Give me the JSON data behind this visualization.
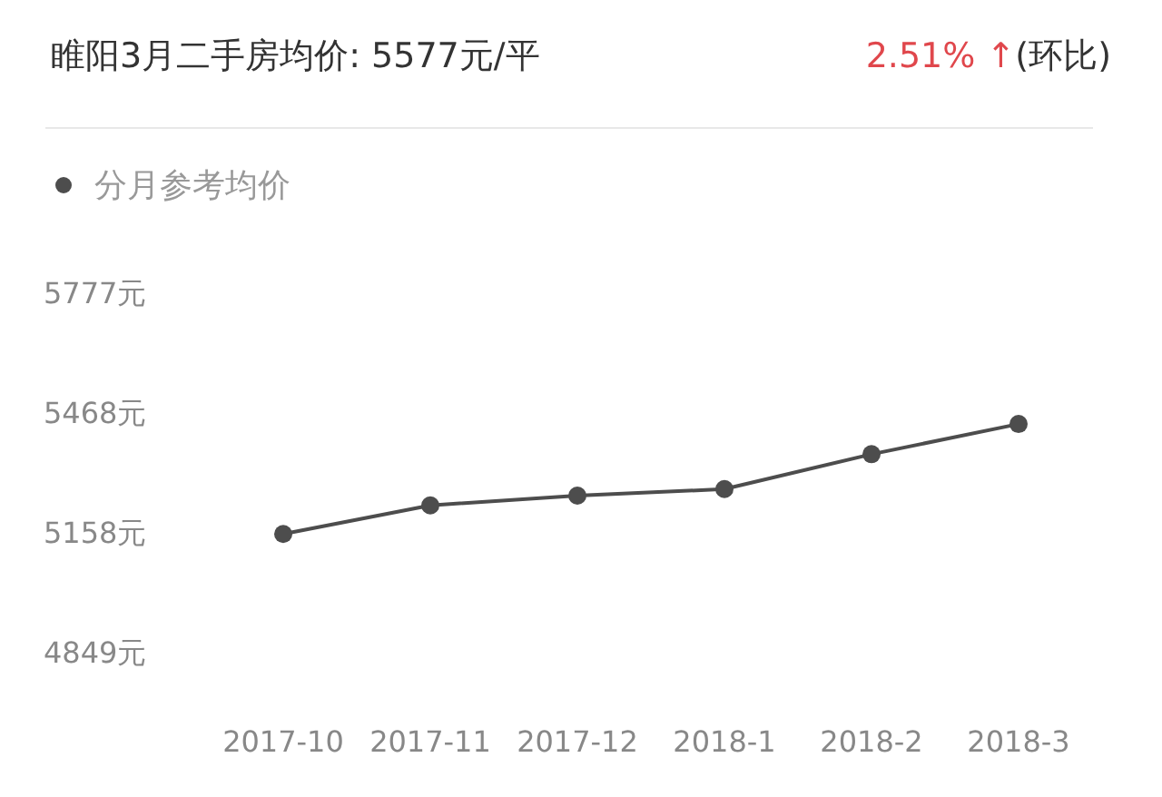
{
  "chart_data": {
    "type": "line",
    "title": "睢阳3月二手房均价: 5577元/平",
    "annotations": [
      "2.51% ↑",
      "(环比)"
    ],
    "categories": [
      "2017-10",
      "2017-11",
      "2017-12",
      "2018-1",
      "2018-2",
      "2018-3"
    ],
    "series": [
      {
        "name": "分月参考均价",
        "color": "#4d4d4d",
        "values": [
          5153,
          5227,
          5252,
          5269,
          5359,
          5437
        ]
      }
    ],
    "ylim": [
      4849,
      5777
    ],
    "yticks": [
      {
        "value": 4849,
        "label": "4849元"
      },
      {
        "value": 5158,
        "label": "5158元"
      },
      {
        "value": 5468,
        "label": "5468元"
      },
      {
        "value": 5777,
        "label": "5777元"
      }
    ],
    "legend": "top left",
    "marker": "circle",
    "line_style": "solid",
    "grid": false
  }
}
